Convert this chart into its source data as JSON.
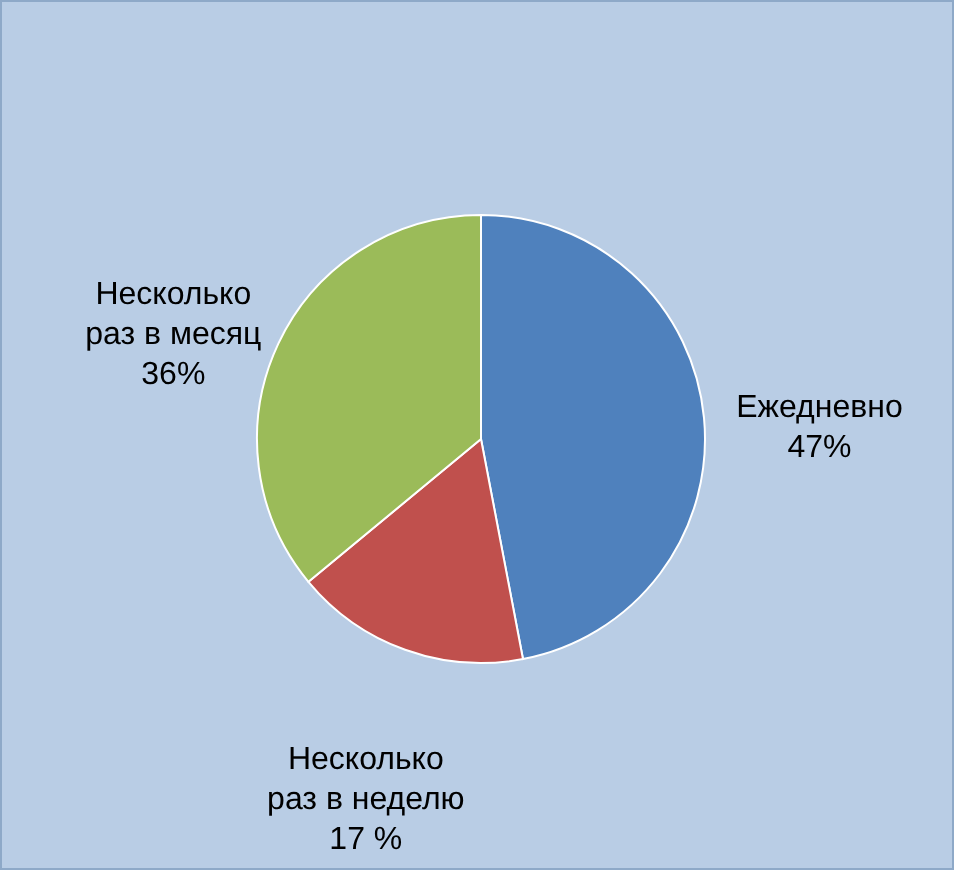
{
  "chart_data": {
    "type": "pie",
    "categories": [
      "Ежедневно",
      "Несколько раз в неделю",
      "Несколько раз в месяц"
    ],
    "values": [
      47,
      17,
      36
    ],
    "value_labels": [
      "47%",
      "17 %",
      "36%"
    ],
    "colors": [
      "#4f81bd",
      "#c0504d",
      "#9bbb59"
    ]
  }
}
